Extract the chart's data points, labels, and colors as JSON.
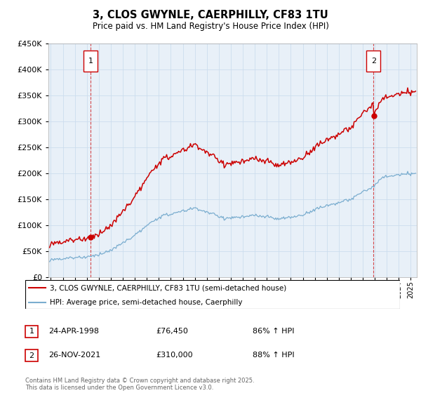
{
  "title": "3, CLOS GWYNLE, CAERPHILLY, CF83 1TU",
  "subtitle": "Price paid vs. HM Land Registry's House Price Index (HPI)",
  "ylim": [
    0,
    450000
  ],
  "xlim": [
    1994.8,
    2025.5
  ],
  "red_color": "#cc0000",
  "blue_color": "#7aadcf",
  "marker1_year": 1998.3,
  "marker1_value": 76450,
  "marker2_year": 2021.9,
  "marker2_value": 310000,
  "legend_line1": "3, CLOS GWYNLE, CAERPHILLY, CF83 1TU (semi-detached house)",
  "legend_line2": "HPI: Average price, semi-detached house, Caerphilly",
  "footer": "Contains HM Land Registry data © Crown copyright and database right 2025.\nThis data is licensed under the Open Government Licence v3.0.",
  "background_color": "#ffffff",
  "grid_color": "#ccddee",
  "plot_bg": "#e8f0f8"
}
